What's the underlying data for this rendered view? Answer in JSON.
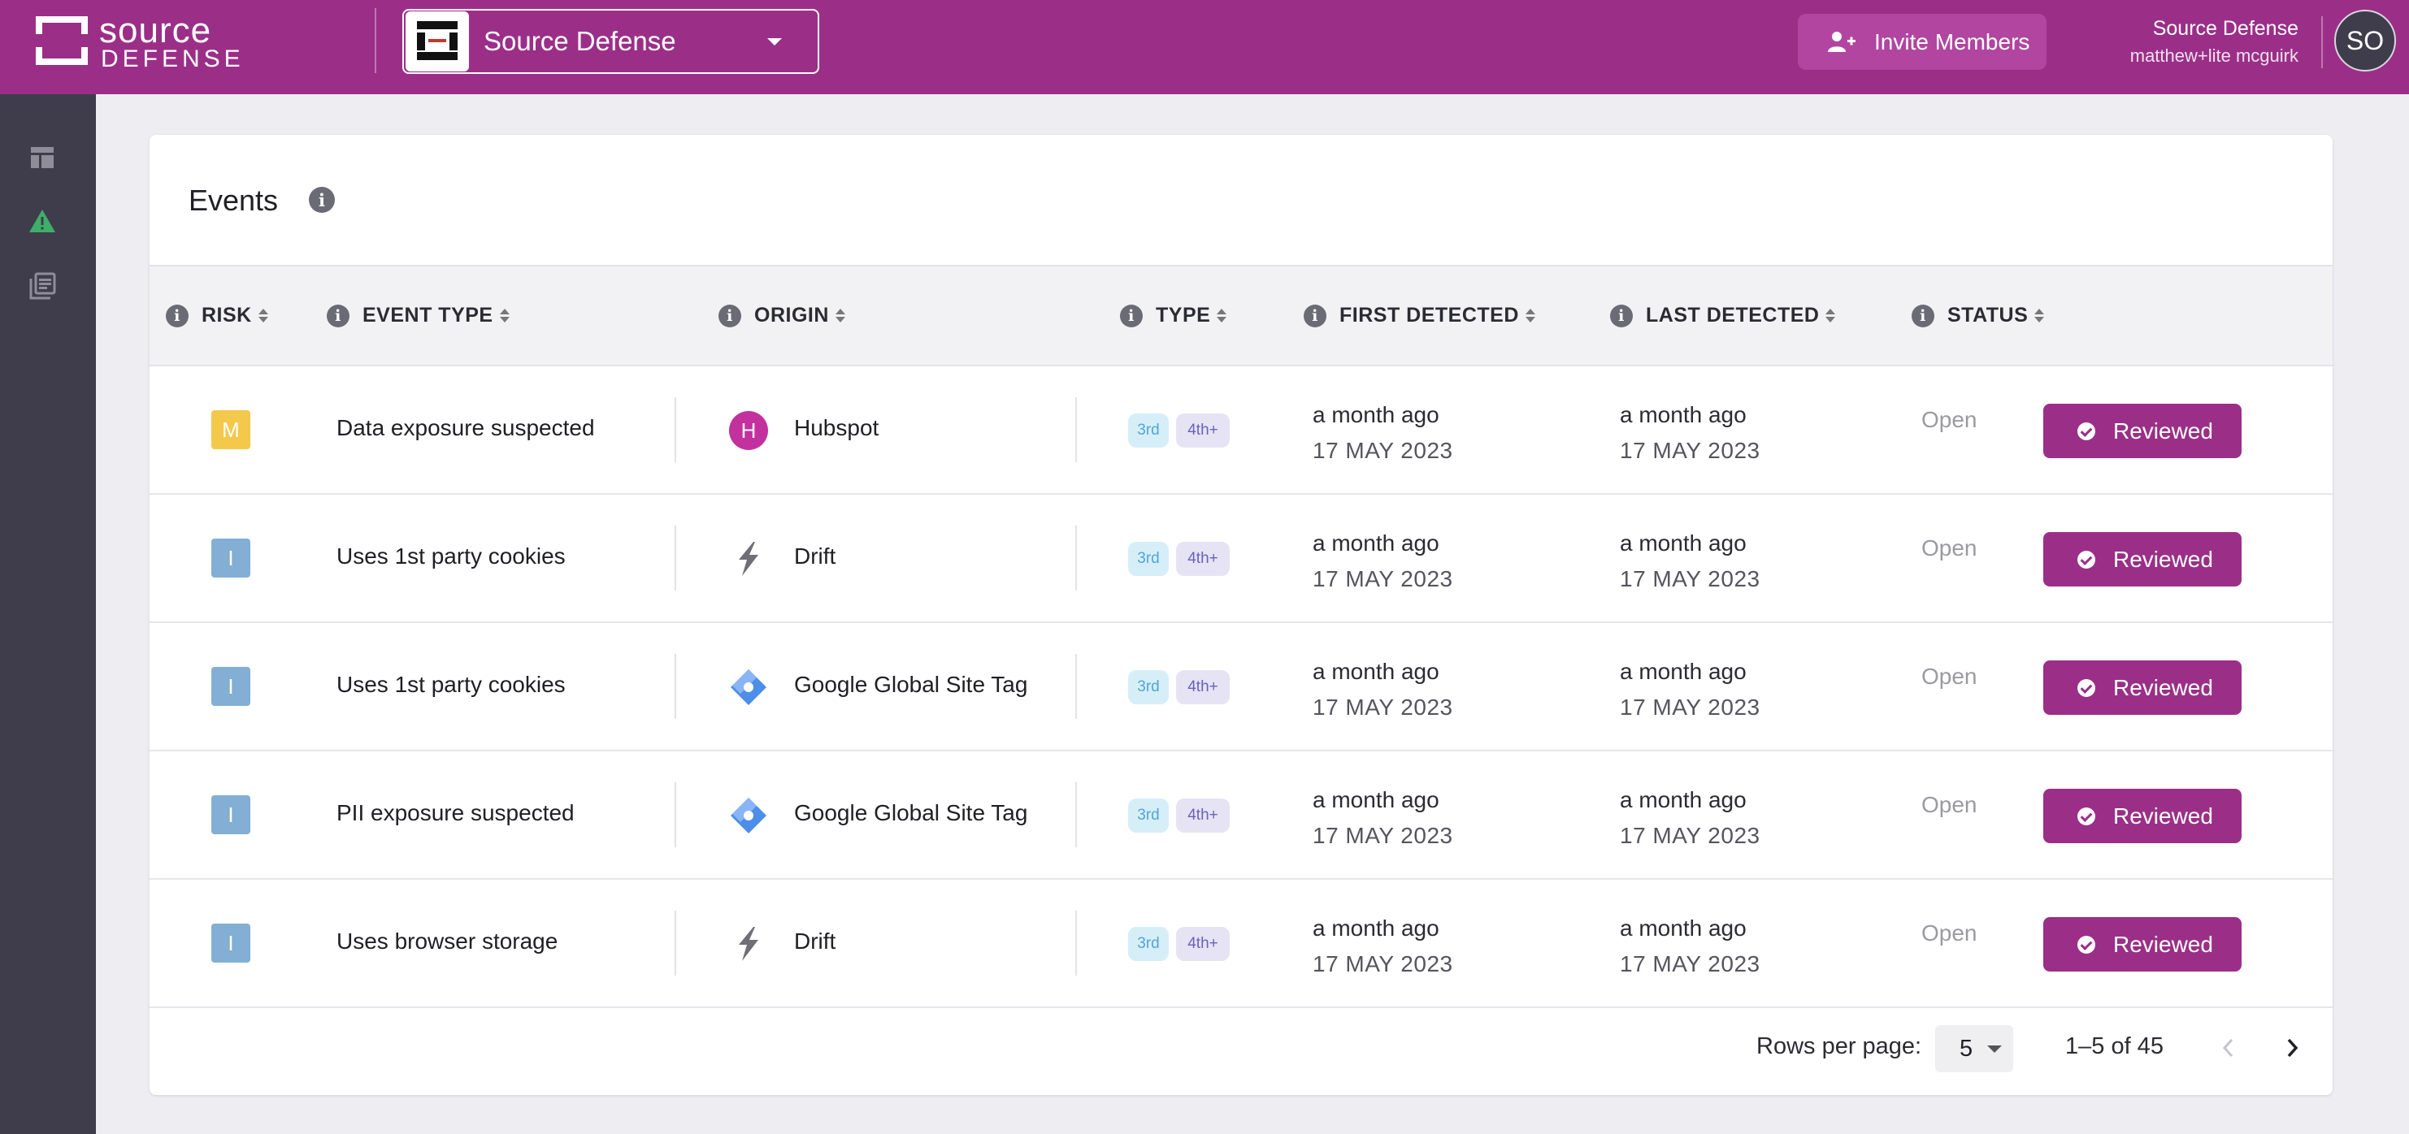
{
  "brand": {
    "logo_word1": "source",
    "logo_word2": "DEFENSE"
  },
  "org_selector": {
    "value": "Source Defense"
  },
  "header": {
    "invite_label": "Invite Members"
  },
  "user": {
    "org": "Source Defense",
    "email": "matthew+lite mcguirk",
    "initials": "SO"
  },
  "sidebar": {
    "items": [
      {
        "icon": "dashboard-icon"
      },
      {
        "icon": "alert-icon",
        "active": true
      },
      {
        "icon": "reports-icon"
      }
    ]
  },
  "colors": {
    "brand": "#9b2f88",
    "sidebar": "#3f3d4b",
    "risk_medium": "#f3c84b",
    "risk_info": "#82afd3",
    "tag_3rd": "#d6eef8",
    "tag_4th": "#e6e3f4"
  },
  "events": {
    "title": "Events",
    "columns": {
      "risk": "RISK",
      "event_type": "EVENT TYPE",
      "origin": "ORIGIN",
      "type": "TYPE",
      "first_detected": "FIRST DETECTED",
      "last_detected": "LAST DETECTED",
      "status": "STATUS"
    },
    "rows": [
      {
        "risk": "M",
        "event": "Data exposure suspected",
        "origin": "Hubspot",
        "origin_icon": "hubspot-icon",
        "tag3": "3rd",
        "tag4": "4th+",
        "first_rel": "a month ago",
        "first_date": "17 MAY 2023",
        "last_rel": "a month ago",
        "last_date": "17 MAY 2023",
        "status": "Open",
        "action": "Reviewed"
      },
      {
        "risk": "I",
        "event": "Uses 1st party cookies",
        "origin": "Drift",
        "origin_icon": "drift-icon",
        "tag3": "3rd",
        "tag4": "4th+",
        "first_rel": "a month ago",
        "first_date": "17 MAY 2023",
        "last_rel": "a month ago",
        "last_date": "17 MAY 2023",
        "status": "Open",
        "action": "Reviewed"
      },
      {
        "risk": "I",
        "event": "Uses 1st party cookies",
        "origin": "Google Global Site Tag",
        "origin_icon": "google-tag-icon",
        "tag3": "3rd",
        "tag4": "4th+",
        "first_rel": "a month ago",
        "first_date": "17 MAY 2023",
        "last_rel": "a month ago",
        "last_date": "17 MAY 2023",
        "status": "Open",
        "action": "Reviewed"
      },
      {
        "risk": "I",
        "event": "PII exposure suspected",
        "origin": "Google Global Site Tag",
        "origin_icon": "google-tag-icon",
        "tag3": "3rd",
        "tag4": "4th+",
        "first_rel": "a month ago",
        "first_date": "17 MAY 2023",
        "last_rel": "a month ago",
        "last_date": "17 MAY 2023",
        "status": "Open",
        "action": "Reviewed"
      },
      {
        "risk": "I",
        "event": "Uses browser storage",
        "origin": "Drift",
        "origin_icon": "drift-icon",
        "tag3": "3rd",
        "tag4": "4th+",
        "first_rel": "a month ago",
        "first_date": "17 MAY 2023",
        "last_rel": "a month ago",
        "last_date": "17 MAY 2023",
        "status": "Open",
        "action": "Reviewed"
      }
    ]
  },
  "pagination": {
    "rows_per_page_label": "Rows per page:",
    "rows_per_page": "5",
    "range": "1–5 of 45"
  }
}
